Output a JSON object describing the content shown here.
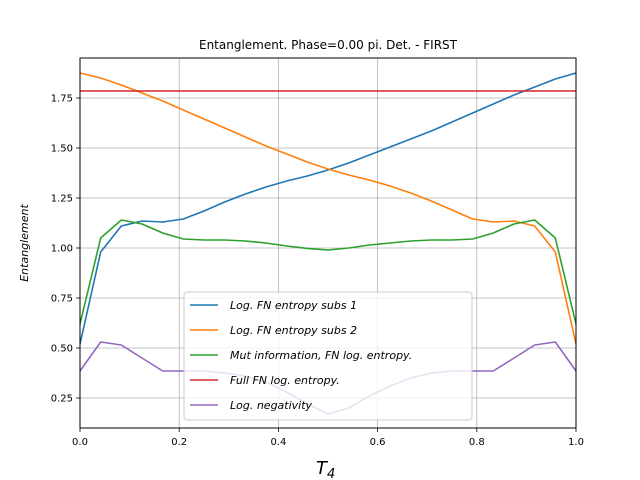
{
  "chart_data": {
    "type": "line",
    "title": "Entanglement. Phase=0.00 pi. Det. - FIRST",
    "xlabel": "T",
    "xlabel_sub": "4",
    "ylabel": "Entanglement",
    "xlim": [
      0.0,
      1.0
    ],
    "ylim": [
      0.1,
      1.95
    ],
    "grid": true,
    "legend_position": "lower center",
    "x_ticks": [
      0.0,
      0.2,
      0.4,
      0.6,
      0.8,
      1.0
    ],
    "x_tick_labels": [
      "0.0",
      "0.2",
      "0.4",
      "0.6",
      "0.8",
      "1.0"
    ],
    "y_ticks": [
      0.25,
      0.5,
      0.75,
      1.0,
      1.25,
      1.5,
      1.75
    ],
    "y_tick_labels": [
      "0.25",
      "0.50",
      "0.75",
      "1.00",
      "1.25",
      "1.50",
      "1.75"
    ],
    "x": [
      0.0,
      0.0417,
      0.0833,
      0.125,
      0.1667,
      0.2083,
      0.25,
      0.2917,
      0.3333,
      0.375,
      0.4167,
      0.4583,
      0.5,
      0.5417,
      0.5833,
      0.625,
      0.6667,
      0.7083,
      0.75,
      0.7917,
      0.8333,
      0.875,
      0.9167,
      0.9583,
      1.0
    ],
    "series": [
      {
        "name": "Log. FN entropy subs 1",
        "color": "#1f77b4",
        "values": [
          0.52,
          0.98,
          1.11,
          1.135,
          1.13,
          1.145,
          1.185,
          1.23,
          1.27,
          1.305,
          1.335,
          1.36,
          1.39,
          1.425,
          1.465,
          1.505,
          1.545,
          1.585,
          1.63,
          1.675,
          1.72,
          1.765,
          1.805,
          1.845,
          1.875
        ]
      },
      {
        "name": "Log. FN entropy subs 2",
        "color": "#ff7f0e",
        "values": [
          1.875,
          1.85,
          1.815,
          1.775,
          1.735,
          1.69,
          1.645,
          1.6,
          1.555,
          1.51,
          1.47,
          1.43,
          1.395,
          1.365,
          1.34,
          1.31,
          1.275,
          1.235,
          1.19,
          1.145,
          1.13,
          1.135,
          1.11,
          0.98,
          0.52
        ]
      },
      {
        "name": "Mut information, FN log. entropy.",
        "color": "#2ca02c",
        "values": [
          0.62,
          1.05,
          1.14,
          1.12,
          1.075,
          1.045,
          1.04,
          1.04,
          1.035,
          1.025,
          1.01,
          0.998,
          0.99,
          1.0,
          1.015,
          1.025,
          1.035,
          1.04,
          1.04,
          1.045,
          1.075,
          1.12,
          1.14,
          1.05,
          0.62
        ]
      },
      {
        "name": "Full FN log. entropy.",
        "color": "#d62728",
        "values": [
          1.785,
          1.785,
          1.785,
          1.785,
          1.785,
          1.785,
          1.785,
          1.785,
          1.785,
          1.785,
          1.785,
          1.785,
          1.785,
          1.785,
          1.785,
          1.785,
          1.785,
          1.785,
          1.785,
          1.785,
          1.785,
          1.785,
          1.785,
          1.785,
          1.785
        ]
      },
      {
        "name": "Log. negativity",
        "color": "#9467bd",
        "values": [
          0.385,
          0.53,
          0.515,
          0.45,
          0.385,
          0.385,
          0.385,
          0.375,
          0.36,
          0.33,
          0.28,
          0.22,
          0.17,
          0.2,
          0.26,
          0.31,
          0.35,
          0.375,
          0.385,
          0.385,
          0.385,
          0.45,
          0.515,
          0.53,
          0.385
        ]
      }
    ]
  }
}
